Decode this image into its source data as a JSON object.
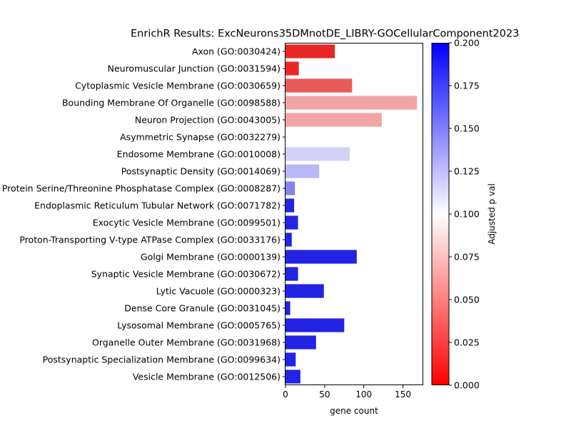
{
  "chart_data": {
    "type": "bar",
    "orientation": "horizontal",
    "title": "EnrichR Results: ExcNeurons35DMnotDE_LIBRY-GOCellularComponent2023",
    "xlabel": "gene count",
    "ylabel": "",
    "xlim": [
      0,
      175
    ],
    "xticks": [
      0,
      50,
      100,
      150
    ],
    "grid": false,
    "categories": [
      "Axon (GO:0030424)",
      "Neuromuscular Junction (GO:0031594)",
      "Cytoplasmic Vesicle Membrane (GO:0030659)",
      "Bounding Membrane Of Organelle (GO:0098588)",
      "Neuron Projection (GO:0043005)",
      "Asymmetric Synapse (GO:0032279)",
      "Endosome Membrane (GO:0010008)",
      "Postsynaptic Density (GO:0014069)",
      "Protein Serine/Threonine Phosphatase Complex (GO:0008287)",
      "Endoplasmic Reticulum Tubular Network (GO:0071782)",
      "Exocytic Vesicle Membrane (GO:0099501)",
      "Proton-Transporting V-type ATPase Complex (GO:0033176)",
      "Golgi Membrane (GO:0000139)",
      "Synaptic Vesicle Membrane (GO:0030672)",
      "Lytic Vacuole (GO:0000323)",
      "Dense Core Granule (GO:0031045)",
      "Lysosomal Membrane (GO:0005765)",
      "Organelle Outer Membrane (GO:0031968)",
      "Postsynaptic Specialization Membrane (GO:0099634)",
      "Vesicle Membrane (GO:0012506)"
    ],
    "values": [
      63,
      17,
      85,
      168,
      123,
      0,
      82,
      43,
      12,
      11,
      16,
      8,
      91,
      16,
      49,
      6,
      75,
      39,
      13,
      19
    ],
    "bar_colors": [
      "#e82828",
      "#e82828",
      "#e85a5a",
      "#f2a5a5",
      "#f2a5a5",
      "#ffffff",
      "#d2d2f8",
      "#b8b8f6",
      "#8484ee",
      "#2323e4",
      "#2323e4",
      "#2323e4",
      "#2323e4",
      "#2323e4",
      "#2323e4",
      "#2323e4",
      "#2323e4",
      "#2323e4",
      "#2323e4",
      "#2323e4"
    ],
    "colorbar": {
      "label": "Adjusted p val",
      "range": [
        0,
        0.2
      ],
      "ticks": [
        "0.000",
        "0.025",
        "0.050",
        "0.075",
        "0.100",
        "0.125",
        "0.150",
        "0.175",
        "0.200"
      ],
      "colors": [
        "#ff0000",
        "#ffffff",
        "#0000ff"
      ]
    }
  }
}
